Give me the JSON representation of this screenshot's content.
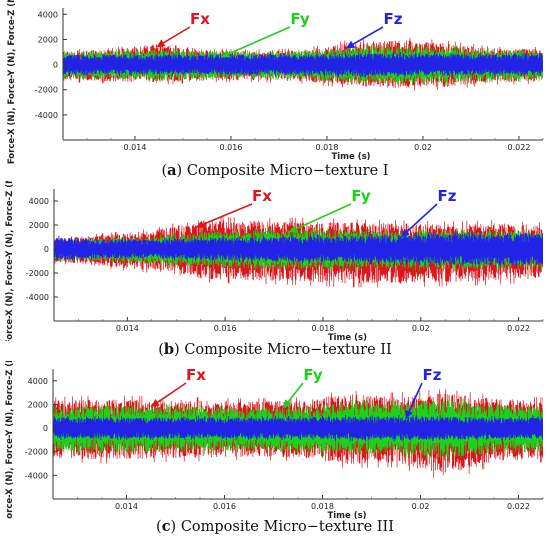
{
  "colors": {
    "fx": "#e0141c",
    "fy": "#19d219",
    "fz": "#2323e8"
  },
  "chart_data": [
    {
      "type": "line",
      "panel_letter": "a",
      "caption_text": "Composite Micro−texture I",
      "xlabel": "Time (s)",
      "ylabel": "Force-X (N), Force-Y (N), Force-Z (N)",
      "xlim": [
        0.0125,
        0.0225
      ],
      "ylim": [
        -6000,
        4500
      ],
      "xticks": [
        0.014,
        0.016,
        0.018,
        0.02,
        0.022
      ],
      "xtick_labels": [
        "0.014",
        "0.016",
        "0.018",
        "0.02",
        "0.022"
      ],
      "yticks": [
        4000,
        2000,
        0,
        -2000,
        -4000
      ],
      "ytick_labels": [
        "4000",
        "2000",
        "0",
        "-2000",
        "-4000"
      ],
      "series": [
        {
          "name": "Fx",
          "color": "#e0141c",
          "x": [
            0.0125,
            0.0135,
            0.0145,
            0.0155,
            0.0165,
            0.0175,
            0.0185,
            0.0195,
            0.0205,
            0.0215,
            0.0225
          ],
          "upper": [
            1200,
            1300,
            1900,
            1300,
            1200,
            1300,
            2000,
            2200,
            1900,
            1400,
            1400
          ],
          "lower": [
            -1400,
            -1500,
            -1600,
            -1400,
            -1400,
            -1500,
            -1900,
            -2100,
            -2000,
            -1600,
            -1500
          ]
        },
        {
          "name": "Fy",
          "color": "#19d219",
          "x": [
            0.0125,
            0.0135,
            0.0145,
            0.0155,
            0.0165,
            0.0175,
            0.0185,
            0.0195,
            0.0205,
            0.0215,
            0.0225
          ],
          "upper": [
            1100,
            1200,
            1300,
            1200,
            1100,
            1200,
            1500,
            1700,
            1500,
            1300,
            1200
          ],
          "lower": [
            -1300,
            -1300,
            -1400,
            -1300,
            -1200,
            -1300,
            -1600,
            -1700,
            -1600,
            -1400,
            -1300
          ]
        },
        {
          "name": "Fz",
          "color": "#2323e8",
          "x": [
            0.0125,
            0.0135,
            0.0145,
            0.0155,
            0.0165,
            0.0175,
            0.0185,
            0.0195,
            0.0205,
            0.0215,
            0.0225
          ],
          "upper": [
            900,
            900,
            900,
            900,
            900,
            900,
            1000,
            1000,
            1000,
            900,
            900
          ],
          "lower": [
            -900,
            -900,
            -900,
            -900,
            -900,
            -900,
            -1000,
            -1000,
            -1000,
            -900,
            -900
          ]
        }
      ],
      "annotations": [
        {
          "text": "Fx",
          "color": "#e0141c",
          "target_x": 0.01445,
          "target_y": 1400
        },
        {
          "text": "Fy",
          "color": "#19d219",
          "target_x": 0.0158,
          "target_y": 600
        },
        {
          "text": "Fz",
          "color": "#2323e8",
          "target_x": 0.0184,
          "target_y": 1300
        }
      ]
    },
    {
      "type": "line",
      "panel_letter": "b",
      "caption_text": "Composite Micro−texture II",
      "xlabel": "Time (s)",
      "ylabel": "Force-X (N), Force-Y (N), Force-Z (N)",
      "xlim": [
        0.0125,
        0.0225
      ],
      "ylim": [
        -6000,
        5000
      ],
      "xticks": [
        0.014,
        0.016,
        0.018,
        0.02,
        0.022
      ],
      "xtick_labels": [
        "0.014",
        "0.016",
        "0.018",
        "0.02",
        "0.022"
      ],
      "yticks": [
        4000,
        2000,
        0,
        -2000,
        -4000
      ],
      "ytick_labels": [
        "4000",
        "2000",
        "0",
        "-2000",
        "-4000"
      ],
      "series": [
        {
          "name": "Fx",
          "color": "#e0141c",
          "x": [
            0.0125,
            0.0135,
            0.0145,
            0.0155,
            0.0165,
            0.0175,
            0.0185,
            0.0195,
            0.0205,
            0.0215,
            0.0225
          ],
          "upper": [
            1000,
            1300,
            1700,
            2700,
            2600,
            2600,
            2500,
            2400,
            2300,
            2400,
            2200
          ],
          "lower": [
            -1200,
            -1600,
            -2000,
            -2800,
            -2900,
            -3000,
            -3200,
            -3200,
            -3100,
            -3000,
            -2700
          ]
        },
        {
          "name": "Fy",
          "color": "#19d219",
          "x": [
            0.0125,
            0.0135,
            0.0145,
            0.0155,
            0.0165,
            0.0175,
            0.0185,
            0.0195,
            0.0205,
            0.0215,
            0.0225
          ],
          "upper": [
            900,
            1000,
            1200,
            1600,
            1700,
            1800,
            1700,
            1600,
            1700,
            1700,
            1600
          ],
          "lower": [
            -1000,
            -1200,
            -1400,
            -1700,
            -1800,
            -1900,
            -1800,
            -1800,
            -1900,
            -1800,
            -1700
          ]
        },
        {
          "name": "Fz",
          "color": "#2323e8",
          "x": [
            0.0125,
            0.0135,
            0.0145,
            0.0155,
            0.0165,
            0.0175,
            0.0185,
            0.0195,
            0.0205,
            0.0215,
            0.0225
          ],
          "upper": [
            1100,
            900,
            900,
            1000,
            1100,
            1200,
            1200,
            1300,
            1400,
            1500,
            1500
          ],
          "lower": [
            -1000,
            -900,
            -900,
            -1000,
            -1100,
            -1200,
            -1200,
            -1300,
            -1400,
            -1500,
            -1500
          ]
        }
      ],
      "annotations": [
        {
          "text": "Fx",
          "color": "#e0141c",
          "target_x": 0.0154,
          "target_y": 1800
        },
        {
          "text": "Fy",
          "color": "#19d219",
          "target_x": 0.0173,
          "target_y": 1400
        },
        {
          "text": "Fz",
          "color": "#2323e8",
          "target_x": 0.0196,
          "target_y": 1000
        }
      ]
    },
    {
      "type": "line",
      "panel_letter": "c",
      "caption_text": "Composite Micro−texture III",
      "xlabel": "Time (s)",
      "ylabel": "Force-X (N), Force-Y (N), Force-Z (N)",
      "xlim": [
        0.0125,
        0.0225
      ],
      "ylim": [
        -6000,
        5000
      ],
      "xticks": [
        0.014,
        0.016,
        0.018,
        0.02,
        0.022
      ],
      "xtick_labels": [
        "0.014",
        "0.016",
        "0.018",
        "0.02",
        "0.022"
      ],
      "yticks": [
        4000,
        2000,
        0,
        -2000,
        -4000
      ],
      "ytick_labels": [
        "4000",
        "2000",
        "0",
        "-2000",
        "-4000"
      ],
      "series": [
        {
          "name": "Fx",
          "color": "#e0141c",
          "x": [
            0.0125,
            0.0135,
            0.0145,
            0.0155,
            0.0165,
            0.0175,
            0.0185,
            0.0195,
            0.0205,
            0.0215,
            0.0225
          ],
          "upper": [
            2600,
            2800,
            2700,
            2600,
            2500,
            2600,
            3200,
            3000,
            3300,
            2800,
            2600
          ],
          "lower": [
            -2800,
            -3000,
            -2900,
            -2800,
            -2700,
            -2800,
            -3400,
            -3300,
            -4500,
            -3200,
            -2900
          ]
        },
        {
          "name": "Fy",
          "color": "#19d219",
          "x": [
            0.0125,
            0.0135,
            0.0145,
            0.0155,
            0.0165,
            0.0175,
            0.0185,
            0.0195,
            0.0205,
            0.0215,
            0.0225
          ],
          "upper": [
            2000,
            2100,
            2100,
            2000,
            1900,
            2000,
            2400,
            2300,
            2700,
            2200,
            2000
          ],
          "lower": [
            -2200,
            -2300,
            -2300,
            -2200,
            -2100,
            -2200,
            -2500,
            -2400,
            -2800,
            -2400,
            -2200
          ]
        },
        {
          "name": "Fz",
          "color": "#2323e8",
          "x": [
            0.0125,
            0.0135,
            0.0145,
            0.0155,
            0.0165,
            0.0175,
            0.0185,
            0.0195,
            0.0205,
            0.0215,
            0.0225
          ],
          "upper": [
            1000,
            1000,
            1000,
            1000,
            1000,
            1000,
            1100,
            1100,
            1100,
            1000,
            1000
          ],
          "lower": [
            -1000,
            -1000,
            -1000,
            -1000,
            -1000,
            -1000,
            -1100,
            -1100,
            -1100,
            -1000,
            -1000
          ]
        }
      ],
      "annotations": [
        {
          "text": "Fx",
          "color": "#e0141c",
          "target_x": 0.0145,
          "target_y": 1800
        },
        {
          "text": "Fy",
          "color": "#19d219",
          "target_x": 0.0172,
          "target_y": 1700
        },
        {
          "text": "Fz",
          "color": "#2323e8",
          "target_x": 0.0197,
          "target_y": 800
        }
      ]
    }
  ]
}
